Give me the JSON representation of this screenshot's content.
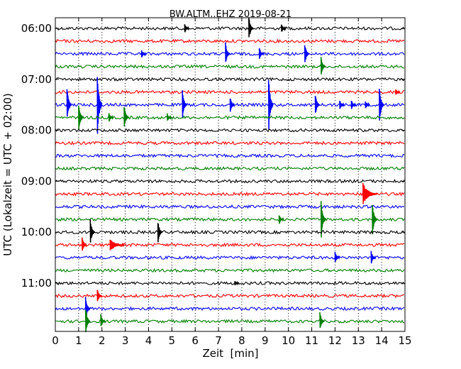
{
  "chart_data": {
    "type": "line",
    "title": "BW.ALTM..EHZ 2019-08-21",
    "xlabel": "Zeit  [min]",
    "ylabel": "UTC (Lokalzeit = UTC + 02:00)",
    "xlim": [
      0,
      15
    ],
    "x_ticks": [
      "0",
      "1",
      "2",
      "3",
      "4",
      "5",
      "6",
      "7",
      "8",
      "9",
      "10",
      "11",
      "12",
      "13",
      "14",
      "15"
    ],
    "y_tick_labels": [
      "06:00",
      "07:00",
      "08:00",
      "09:00",
      "10:00",
      "11:00"
    ],
    "y_tick_label_trace_index": [
      0,
      4,
      8,
      12,
      16,
      20
    ],
    "trace_minutes": 15,
    "grid": "vertical dotted at each minute",
    "colors": [
      "#000000",
      "#ff0000",
      "#0000ff",
      "#007f00"
    ],
    "traces": [
      {
        "start": "06:00",
        "events": [
          {
            "t": 5.55,
            "amp": 0.6
          },
          {
            "t": 8.3,
            "amp": 1.6
          },
          {
            "t": 9.7,
            "amp": 0.6
          }
        ]
      },
      {
        "start": "06:15",
        "events": []
      },
      {
        "start": "06:30",
        "events": [
          {
            "t": 3.7,
            "amp": 0.5
          },
          {
            "t": 7.3,
            "amp": 1.4
          },
          {
            "t": 8.75,
            "amp": 0.8
          },
          {
            "t": 10.7,
            "amp": 1.4
          }
        ]
      },
      {
        "start": "06:45",
        "events": [
          {
            "t": 11.4,
            "amp": 1.2
          }
        ]
      },
      {
        "start": "07:00",
        "events": []
      },
      {
        "start": "07:15",
        "events": [
          {
            "t": 14.6,
            "amp": 0.4
          }
        ]
      },
      {
        "start": "07:30",
        "events": [
          {
            "t": 0.5,
            "amp": 2.2
          },
          {
            "t": 1.8,
            "amp": 4.5
          },
          {
            "t": 5.45,
            "amp": 1.8
          },
          {
            "t": 7.5,
            "amp": 1.0
          },
          {
            "t": 9.15,
            "amp": 3.5
          },
          {
            "t": 11.15,
            "amp": 1.4
          },
          {
            "t": 12.2,
            "amp": 0.6
          },
          {
            "t": 12.7,
            "amp": 0.6
          },
          {
            "t": 13.3,
            "amp": 0.5
          },
          {
            "t": 13.9,
            "amp": 2.4
          }
        ]
      },
      {
        "start": "07:45",
        "events": [
          {
            "t": 1.0,
            "amp": 2.0
          },
          {
            "t": 2.3,
            "amp": 0.6
          },
          {
            "t": 2.95,
            "amp": 1.6
          },
          {
            "t": 4.8,
            "amp": 0.5
          }
        ]
      },
      {
        "start": "08:00",
        "events": []
      },
      {
        "start": "08:15",
        "events": []
      },
      {
        "start": "08:30",
        "events": []
      },
      {
        "start": "08:45",
        "events": []
      },
      {
        "start": "09:00",
        "events": []
      },
      {
        "start": "09:15",
        "events": [
          {
            "t": 13.4,
            "amp": 1.3,
            "burst": true
          }
        ]
      },
      {
        "start": "09:30",
        "events": []
      },
      {
        "start": "09:45",
        "events": [
          {
            "t": 9.6,
            "amp": 0.6
          },
          {
            "t": 11.4,
            "amp": 2.5
          },
          {
            "t": 13.6,
            "amp": 2.2
          }
        ]
      },
      {
        "start": "10:00",
        "events": [
          {
            "t": 1.5,
            "amp": 1.6
          },
          {
            "t": 4.4,
            "amp": 1.5
          }
        ]
      },
      {
        "start": "10:15",
        "events": [
          {
            "t": 1.15,
            "amp": 1.0
          },
          {
            "t": 2.55,
            "amp": 0.8,
            "burst": true
          }
        ]
      },
      {
        "start": "10:30",
        "events": [
          {
            "t": 12.0,
            "amp": 0.7
          },
          {
            "t": 13.55,
            "amp": 0.8
          }
        ]
      },
      {
        "start": "10:45",
        "events": []
      },
      {
        "start": "11:00",
        "events": [
          {
            "t": 7.7,
            "amp": 0.3
          }
        ]
      },
      {
        "start": "11:15",
        "events": [
          {
            "t": 1.8,
            "amp": 0.9
          }
        ]
      },
      {
        "start": "11:30",
        "events": [
          {
            "t": 1.3,
            "amp": 1.5
          }
        ]
      },
      {
        "start": "11:45",
        "events": [
          {
            "t": 1.3,
            "amp": 1.8
          },
          {
            "t": 1.95,
            "amp": 0.9
          },
          {
            "t": 11.35,
            "amp": 1.2
          }
        ]
      }
    ]
  }
}
